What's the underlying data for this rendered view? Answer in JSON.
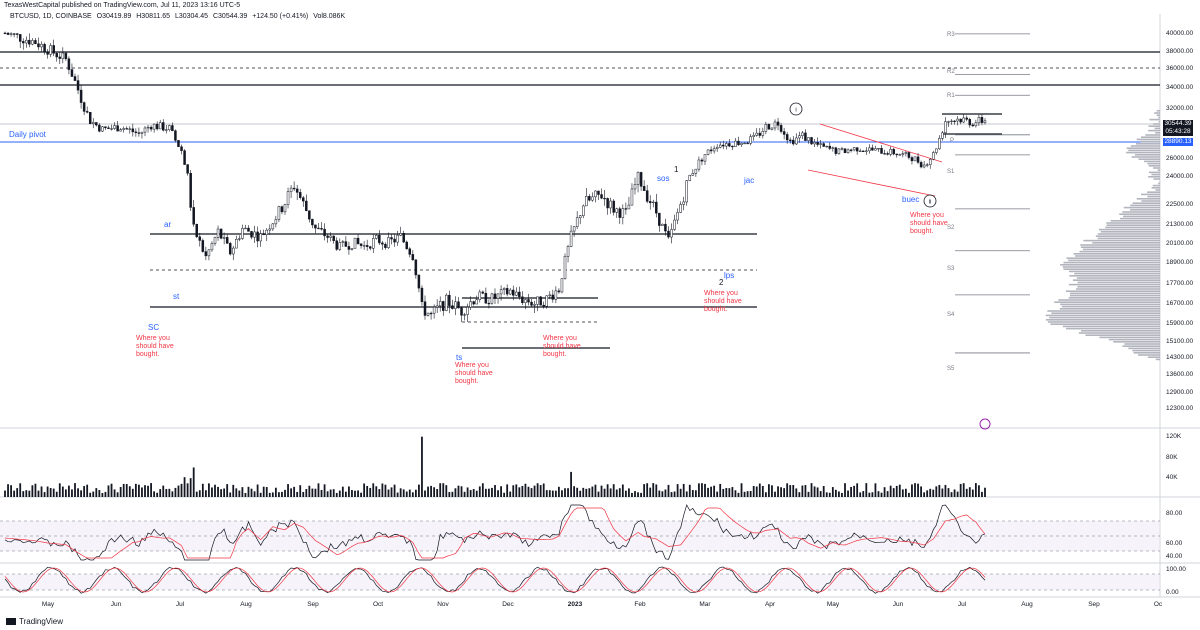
{
  "header": {
    "publisher_line": "TexasWestCapital published on TradingView.com, Jul 11, 2023 13:16 UTC-5",
    "symbol": "BTCUSD, 1D, COINBASE",
    "open": "O30419.89",
    "high": "H30811.65",
    "low": "L30304.45",
    "close": "C30544.39",
    "change": "+124.50 (+0.41%)",
    "volume": "Vol8.086K"
  },
  "footer": {
    "brand": "TradingView"
  },
  "annotations": {
    "daily_pivot": "Daily pivot",
    "ar": "ar",
    "st": "st",
    "sc": "SC",
    "ts": "ts",
    "sos": "sos",
    "jac": "jac",
    "lps": "lps",
    "buec": "buec",
    "wave1": "1",
    "wave2": "2",
    "wave_i": "i",
    "wave_ii": "ii",
    "bought_sc": "Where you should have bought.",
    "bought_ts": "Where you should have bought.",
    "bought_range": "Where you should have bought.",
    "bought_lps": "Where you should have bought.",
    "bought_buec": "Where you should have bought."
  },
  "pivots": {
    "r3": "R3",
    "r2": "R2",
    "r1": "R1",
    "p": "P",
    "s1": "S1",
    "s2": "S2",
    "s3": "S3",
    "s4": "S4",
    "s5": "S5"
  },
  "price_tags": {
    "last": "30544.39",
    "countdown": "05:43:28",
    "pivot": "28890.13"
  },
  "colors": {
    "candle": "#131722",
    "pivot_line": "#2962ff",
    "annotation_blue": "#2962ff",
    "annotation_red": "#f23645",
    "rsi_ma": "#f23645"
  },
  "chart_data": {
    "type": "candlestick",
    "price_axis": {
      "ticks": [
        "40000.00",
        "38000.00",
        "36000.00",
        "34000.00",
        "32000.00",
        "30000.00",
        "28000.00",
        "26000.00",
        "24000.00",
        "22500.00",
        "21300.00",
        "20100.00",
        "18900.00",
        "17700.00",
        "16700.00",
        "15900.00",
        "15100.00",
        "14300.00",
        "13600.00",
        "12900.00",
        "12300.00"
      ]
    },
    "time_axis": {
      "ticks": [
        "May",
        "Jun",
        "Jul",
        "Aug",
        "Sep",
        "Oct",
        "Nov",
        "Dec",
        "2023",
        "Feb",
        "Mar",
        "Apr",
        "May",
        "Jun",
        "Jul",
        "Aug",
        "Sep",
        "Oc"
      ]
    },
    "close_path": [
      [
        0,
        40000
      ],
      [
        10,
        39000
      ],
      [
        20,
        37000
      ],
      [
        28,
        30500
      ],
      [
        32,
        29500
      ],
      [
        38,
        29800
      ],
      [
        44,
        29000
      ],
      [
        48,
        30000
      ],
      [
        54,
        29600
      ],
      [
        58,
        27000
      ],
      [
        62,
        21000
      ],
      [
        66,
        19200
      ],
      [
        70,
        20800
      ],
      [
        74,
        19500
      ],
      [
        78,
        21000
      ],
      [
        84,
        20500
      ],
      [
        90,
        22000
      ],
      [
        95,
        23500
      ],
      [
        98,
        22500
      ],
      [
        102,
        21000
      ],
      [
        106,
        20500
      ],
      [
        110,
        19800
      ],
      [
        114,
        20100
      ],
      [
        118,
        19900
      ],
      [
        122,
        20300
      ],
      [
        126,
        20100
      ],
      [
        130,
        20500
      ],
      [
        134,
        19300
      ],
      [
        137,
        16500
      ],
      [
        140,
        16200
      ],
      [
        145,
        16800
      ],
      [
        150,
        16400
      ],
      [
        155,
        17000
      ],
      [
        160,
        16900
      ],
      [
        166,
        17300
      ],
      [
        170,
        16900
      ],
      [
        174,
        16700
      ],
      [
        178,
        16900
      ],
      [
        182,
        17400
      ],
      [
        186,
        20500
      ],
      [
        190,
        22500
      ],
      [
        196,
        23000
      ],
      [
        200,
        22200
      ],
      [
        204,
        21900
      ],
      [
        208,
        24000
      ],
      [
        214,
        22000
      ],
      [
        218,
        20200
      ],
      [
        222,
        22500
      ],
      [
        226,
        24500
      ],
      [
        230,
        26500
      ],
      [
        234,
        27800
      ],
      [
        240,
        28000
      ],
      [
        246,
        28400
      ],
      [
        250,
        29800
      ],
      [
        254,
        30300
      ],
      [
        258,
        28200
      ],
      [
        262,
        28800
      ],
      [
        268,
        27500
      ],
      [
        274,
        26800
      ],
      [
        280,
        27300
      ],
      [
        286,
        27000
      ],
      [
        292,
        26700
      ],
      [
        298,
        26100
      ],
      [
        302,
        25200
      ],
      [
        305,
        26500
      ],
      [
        309,
        30500
      ],
      [
        314,
        30700
      ],
      [
        318,
        30300
      ],
      [
        322,
        30544
      ]
    ],
    "volume_axis": {
      "ticks": [
        "120K",
        "80K",
        "40K"
      ]
    },
    "rsi_axis": {
      "ticks": [
        "80.00",
        "60.00",
        "40.00"
      ]
    },
    "stoch_axis": {
      "ticks": [
        "100.00",
        "0.00"
      ]
    },
    "pivot_levels": {
      "R3": 39900,
      "R2": 35300,
      "R1": 33200,
      "P": 28890.13,
      "S1": 26400,
      "S2": 22200,
      "S3": 19600,
      "S4": 17100,
      "S5": 14500
    },
    "volume_profile": true
  }
}
